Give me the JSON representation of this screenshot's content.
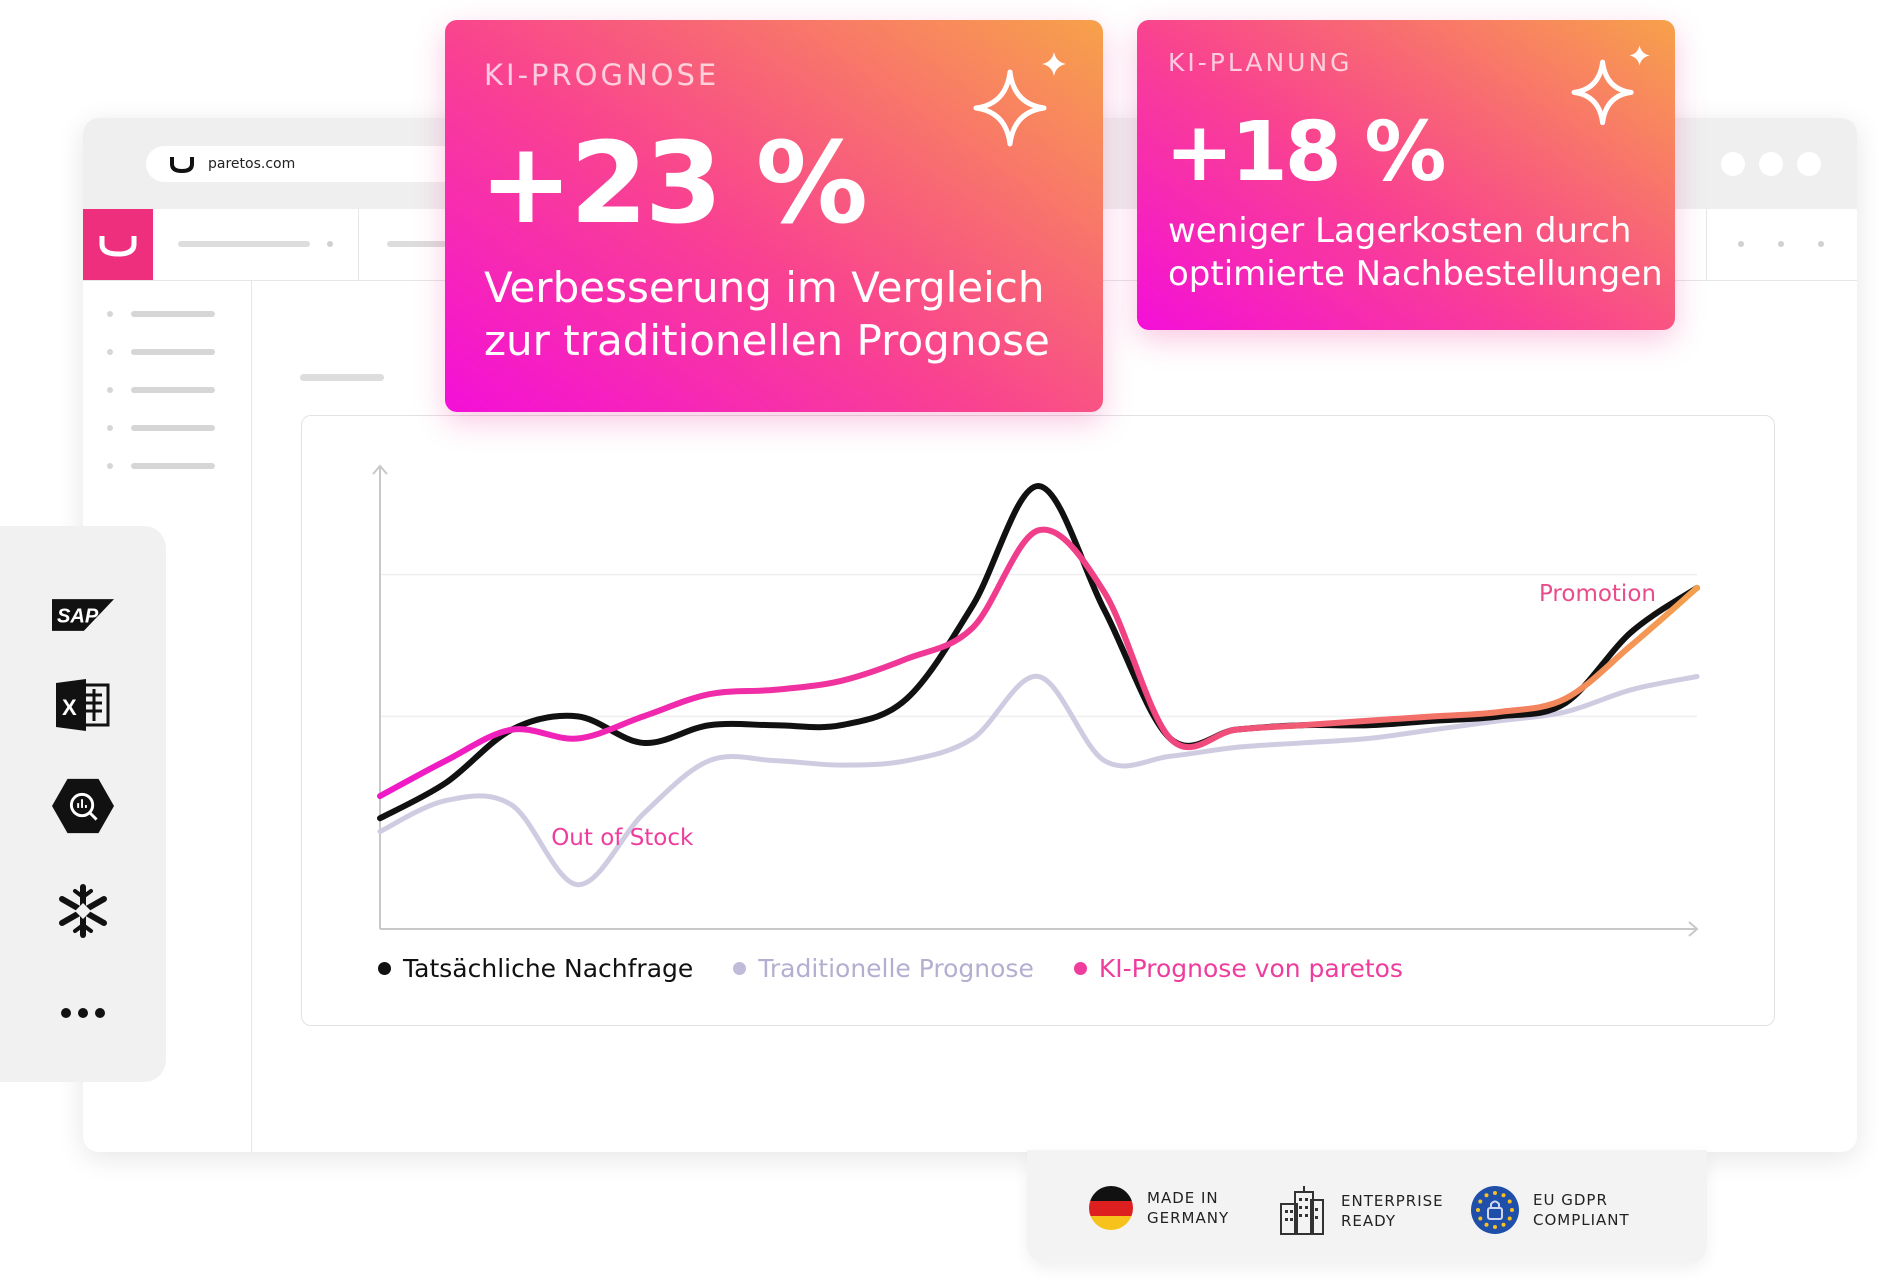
{
  "browser": {
    "url": "paretos.com"
  },
  "kpi_cards": [
    {
      "label": "KI-PROGNOSE",
      "value": "+23 %",
      "description_line1": "Verbesserung im Vergleich",
      "description_line2": "zur traditionellen Prognose"
    },
    {
      "label": "KI-PLANUNG",
      "value": "+18 %",
      "description_line1": "weniger Lagerkosten durch",
      "description_line2": "optimierte Nachbestellungen"
    }
  ],
  "connectors": [
    {
      "icon": "sap-icon",
      "text": "SAP"
    },
    {
      "icon": "excel-icon",
      "text": "X"
    },
    {
      "icon": "bigquery-icon"
    },
    {
      "icon": "snowflake-icon"
    },
    {
      "icon": "more-icon"
    }
  ],
  "chart_data": {
    "type": "line",
    "title": "",
    "xlabel": "",
    "ylabel": "",
    "grid": true,
    "legend_position": "bottom-left",
    "x": [
      0,
      0.5,
      1,
      1.5,
      2,
      2.5,
      3,
      3.5,
      4,
      4.5,
      5,
      5.5,
      6,
      6.5,
      7,
      7.5,
      8,
      8.5,
      9,
      9.5,
      10
    ],
    "xlim": [
      0,
      10
    ],
    "ylim": [
      0,
      10
    ],
    "series": [
      {
        "name": "Tatsächliche Nachfrage",
        "color": "#111111",
        "values": [
          2.5,
          3.3,
          4.5,
          4.8,
          4.2,
          4.6,
          4.6,
          4.6,
          5.2,
          7.3,
          10.0,
          7.2,
          4.3,
          4.5,
          4.6,
          4.6,
          4.7,
          4.8,
          5.1,
          6.7,
          7.7
        ]
      },
      {
        "name": "Traditionelle Prognose",
        "color": "#cfcce2",
        "values": [
          2.2,
          2.9,
          2.8,
          1.0,
          2.6,
          3.8,
          3.8,
          3.7,
          3.8,
          4.3,
          5.7,
          3.8,
          3.9,
          4.1,
          4.2,
          4.3,
          4.5,
          4.7,
          4.9,
          5.4,
          5.7
        ]
      },
      {
        "name": "KI-Prognose von paretos",
        "color": "#ee3d9d",
        "values": [
          3.0,
          3.8,
          4.5,
          4.3,
          4.8,
          5.3,
          5.4,
          5.6,
          6.1,
          6.8,
          9.0,
          7.6,
          4.3,
          4.5,
          4.6,
          4.7,
          4.8,
          4.9,
          5.2,
          6.4,
          7.7
        ]
      }
    ],
    "annotations": [
      {
        "text": "Out of Stock",
        "color": "#ee3d9d"
      },
      {
        "text": "Promotion",
        "color": "#e94c8b"
      }
    ]
  },
  "badges": [
    {
      "icon": "germany-flag-icon",
      "line1": "MADE IN",
      "line2": "GERMANY"
    },
    {
      "icon": "building-icon",
      "line1": "ENTERPRISE",
      "line2": "READY"
    },
    {
      "icon": "eu-lock-icon",
      "line1": "EU GDPR",
      "line2": "COMPLIANT"
    }
  ]
}
